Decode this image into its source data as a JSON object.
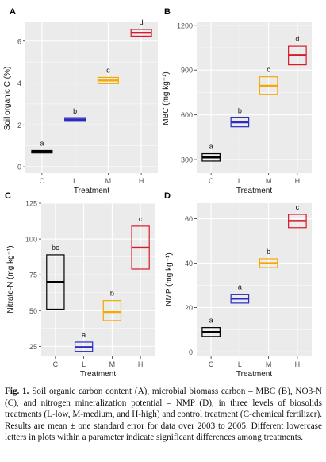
{
  "caption": {
    "label": "Fig. 1.",
    "text": "Soil organic carbon content (A), microbial biomass carbon – MBC (B), NO3-N (C), and nitrogen mineralization potential – NMP (D), in three levels of biosolids treatments (L-low, M-medium, and H-high) and control treatment (C-chemical fertilizer). Results are mean ± one standard error for data over 2003 to 2005. Different lowercase letters in plots within a parameter indicate significant differences among treatments."
  },
  "colors": {
    "C": "#000000",
    "L": "#2b2bbf",
    "M": "#f5a800",
    "H": "#d8192c",
    "panel_bg": "#ebebeb",
    "grid": "#ffffff"
  },
  "chart_data": [
    {
      "panel": "A",
      "type": "bar",
      "categories": [
        "C",
        "L",
        "M",
        "H"
      ],
      "xlabel": "Treatment",
      "ylabel": "Soil organic C (%)",
      "ylim": [
        -0.3,
        6.9
      ],
      "yticks": [
        0,
        2,
        4,
        6
      ],
      "values": [
        0.72,
        2.24,
        4.12,
        6.4
      ],
      "lower": [
        0.66,
        2.17,
        3.97,
        6.24
      ],
      "upper": [
        0.78,
        2.31,
        4.27,
        6.56
      ],
      "letters": [
        "a",
        "b",
        "c",
        "d"
      ]
    },
    {
      "panel": "B",
      "type": "bar",
      "categories": [
        "C",
        "L",
        "M",
        "H"
      ],
      "xlabel": "Treatment",
      "ylabel": "MBC (mg kg⁻¹)",
      "ylim": [
        210,
        1220
      ],
      "yticks": [
        300,
        600,
        900,
        1200
      ],
      "values": [
        315,
        550,
        795,
        1000
      ],
      "lower": [
        290,
        520,
        735,
        935
      ],
      "upper": [
        340,
        580,
        855,
        1060
      ],
      "letters": [
        "a",
        "b",
        "c",
        "d"
      ]
    },
    {
      "panel": "C",
      "type": "bar",
      "categories": [
        "C",
        "L",
        "M",
        "H"
      ],
      "xlabel": "Treatment",
      "ylabel": "Nitrate-N (mg kg⁻¹)",
      "ylim": [
        18,
        125
      ],
      "yticks": [
        25,
        50,
        75,
        100,
        125
      ],
      "values": [
        70,
        24.5,
        49,
        94
      ],
      "lower": [
        51,
        21.5,
        43,
        79
      ],
      "upper": [
        89,
        28,
        57,
        109
      ],
      "letters": [
        "bc",
        "a",
        "b",
        "c"
      ]
    },
    {
      "panel": "D",
      "type": "bar",
      "categories": [
        "C",
        "L",
        "M",
        "H"
      ],
      "xlabel": "Treatment",
      "ylabel": "NMP (mg kg⁻¹)",
      "ylim": [
        -2,
        67
      ],
      "yticks": [
        0,
        20,
        40,
        60
      ],
      "values": [
        9,
        24,
        40,
        59
      ],
      "lower": [
        7,
        22,
        38,
        56
      ],
      "upper": [
        11,
        26,
        42,
        62
      ],
      "letters": [
        "a",
        "a",
        "b",
        "c"
      ]
    }
  ]
}
